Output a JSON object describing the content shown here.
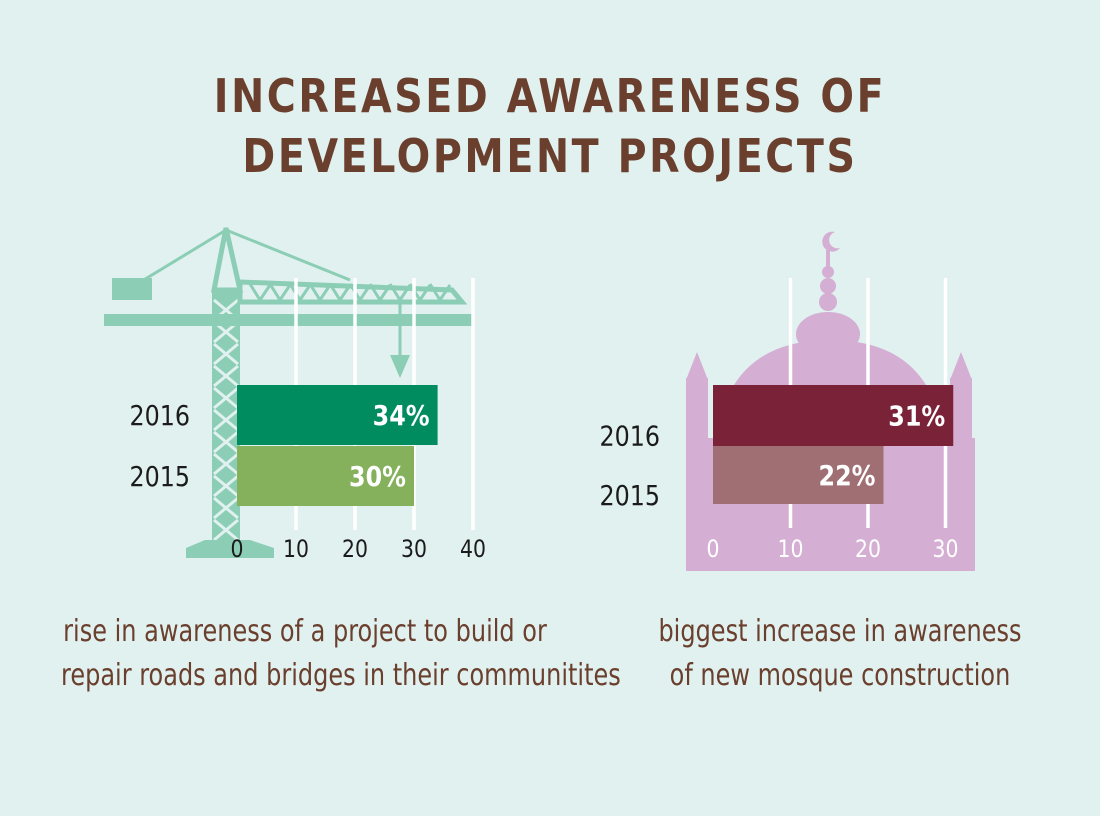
{
  "title": {
    "line1": "INCREASED AWARENESS OF",
    "line2": "DEVELOPMENT PROJECTS"
  },
  "colors": {
    "background": "#e0f1ef",
    "title": "#6b3f2e",
    "crane": "#8ccdb5",
    "mosque": "#d4aed3",
    "left_2016": "#008c5e",
    "left_2015": "#86b15c",
    "right_2016": "#7a2338",
    "right_2015": "#9f6f74"
  },
  "chart_data": [
    {
      "type": "bar",
      "orientation": "horizontal",
      "icon": "crane-icon",
      "categories": [
        "2016",
        "2015"
      ],
      "values": [
        34,
        30
      ],
      "value_labels": [
        "34%",
        "30%"
      ],
      "xlim": [
        0,
        40
      ],
      "xticks": [
        "0",
        "10",
        "20",
        "30",
        "40"
      ],
      "grid": true,
      "caption": [
        "rise in awareness of a project to build or",
        "repair roads and bridges in their communitites"
      ]
    },
    {
      "type": "bar",
      "orientation": "horizontal",
      "icon": "mosque-icon",
      "categories": [
        "2016",
        "2015"
      ],
      "values": [
        31,
        22
      ],
      "value_labels": [
        "31%",
        "22%"
      ],
      "xlim": [
        0,
        30
      ],
      "xticks": [
        "0",
        "10",
        "20",
        "30"
      ],
      "grid": true,
      "caption": [
        "biggest increase in awareness",
        "of new mosque construction"
      ]
    }
  ]
}
